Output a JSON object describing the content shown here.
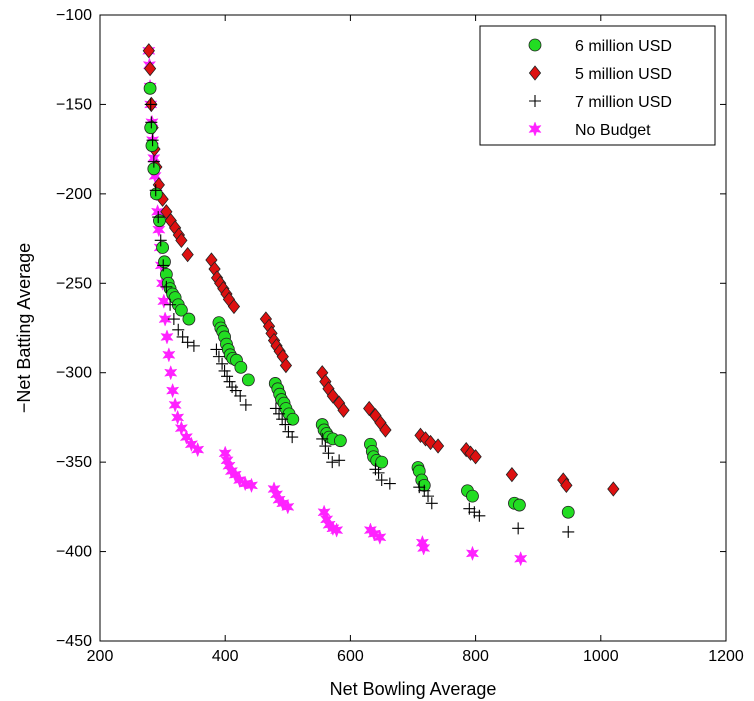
{
  "chart_data": {
    "type": "scatter",
    "title": "",
    "xlabel": "Net Bowling Average",
    "ylabel": "−Net Batting Average",
    "xlim": [
      200,
      1200
    ],
    "ylim": [
      -450,
      -100
    ],
    "xticks": [
      "200",
      "400",
      "600",
      "800",
      "1000",
      "1200"
    ],
    "yticks": [
      "−100",
      "−150",
      "−200",
      "−250",
      "−300",
      "−350",
      "−400",
      "−450"
    ],
    "grid": false,
    "legend_position": "top-right",
    "series": [
      {
        "name": "6 million USD",
        "marker": "circle",
        "color": "#22dd22",
        "points": [
          [
            280,
            -141
          ],
          [
            281,
            -163
          ],
          [
            283,
            -173
          ],
          [
            286,
            -186
          ],
          [
            290,
            -200
          ],
          [
            295,
            -215
          ],
          [
            300,
            -230
          ],
          [
            303,
            -238
          ],
          [
            306,
            -245
          ],
          [
            309,
            -250
          ],
          [
            312,
            -253
          ],
          [
            316,
            -256
          ],
          [
            320,
            -258
          ],
          [
            325,
            -262
          ],
          [
            330,
            -265
          ],
          [
            342,
            -270
          ],
          [
            390,
            -272
          ],
          [
            393,
            -275
          ],
          [
            396,
            -277
          ],
          [
            399,
            -280
          ],
          [
            402,
            -284
          ],
          [
            405,
            -287
          ],
          [
            408,
            -290
          ],
          [
            412,
            -292
          ],
          [
            418,
            -293
          ],
          [
            425,
            -297
          ],
          [
            437,
            -304
          ],
          [
            480,
            -306
          ],
          [
            484,
            -309
          ],
          [
            487,
            -312
          ],
          [
            490,
            -315
          ],
          [
            494,
            -317
          ],
          [
            497,
            -320
          ],
          [
            502,
            -323
          ],
          [
            508,
            -326
          ],
          [
            555,
            -329
          ],
          [
            558,
            -332
          ],
          [
            562,
            -334
          ],
          [
            566,
            -336
          ],
          [
            572,
            -337
          ],
          [
            584,
            -338
          ],
          [
            632,
            -340
          ],
          [
            635,
            -344
          ],
          [
            637,
            -347
          ],
          [
            642,
            -349
          ],
          [
            650,
            -350
          ],
          [
            708,
            -353
          ],
          [
            710,
            -355
          ],
          [
            714,
            -360
          ],
          [
            718,
            -363
          ],
          [
            787,
            -366
          ],
          [
            795,
            -369
          ],
          [
            862,
            -373
          ],
          [
            870,
            -374
          ],
          [
            948,
            -378
          ]
        ]
      },
      {
        "name": "5 million USD",
        "marker": "diamond",
        "color": "#dd1111",
        "points": [
          [
            278,
            -120
          ],
          [
            280,
            -130
          ],
          [
            282,
            -150
          ],
          [
            284,
            -163
          ],
          [
            287,
            -175
          ],
          [
            290,
            -185
          ],
          [
            294,
            -195
          ],
          [
            300,
            -203
          ],
          [
            306,
            -210
          ],
          [
            313,
            -215
          ],
          [
            320,
            -219
          ],
          [
            326,
            -223
          ],
          [
            330,
            -226
          ],
          [
            340,
            -234
          ],
          [
            378,
            -237
          ],
          [
            383,
            -242
          ],
          [
            387,
            -247
          ],
          [
            392,
            -250
          ],
          [
            397,
            -253
          ],
          [
            402,
            -256
          ],
          [
            406,
            -259
          ],
          [
            414,
            -263
          ],
          [
            465,
            -270
          ],
          [
            470,
            -274
          ],
          [
            474,
            -278
          ],
          [
            478,
            -282
          ],
          [
            482,
            -285
          ],
          [
            487,
            -288
          ],
          [
            492,
            -291
          ],
          [
            497,
            -296
          ],
          [
            555,
            -300
          ],
          [
            560,
            -305
          ],
          [
            565,
            -309
          ],
          [
            572,
            -313
          ],
          [
            582,
            -317
          ],
          [
            589,
            -321
          ],
          [
            630,
            -320
          ],
          [
            640,
            -324
          ],
          [
            648,
            -328
          ],
          [
            656,
            -332
          ],
          [
            712,
            -335
          ],
          [
            720,
            -337
          ],
          [
            728,
            -339
          ],
          [
            740,
            -341
          ],
          [
            785,
            -343
          ],
          [
            792,
            -345
          ],
          [
            800,
            -347
          ],
          [
            858,
            -357
          ],
          [
            940,
            -360
          ],
          [
            945,
            -363
          ],
          [
            1020,
            -365
          ]
        ]
      },
      {
        "name": "7 million USD",
        "marker": "plus",
        "color": "#000000",
        "points": [
          [
            281,
            -150
          ],
          [
            282,
            -160
          ],
          [
            284,
            -170
          ],
          [
            286,
            -182
          ],
          [
            289,
            -198
          ],
          [
            293,
            -213
          ],
          [
            297,
            -226
          ],
          [
            301,
            -240
          ],
          [
            306,
            -252
          ],
          [
            312,
            -262
          ],
          [
            318,
            -270
          ],
          [
            325,
            -276
          ],
          [
            332,
            -280
          ],
          [
            340,
            -283
          ],
          [
            350,
            -285
          ],
          [
            386,
            -287
          ],
          [
            390,
            -291
          ],
          [
            395,
            -295
          ],
          [
            399,
            -299
          ],
          [
            403,
            -302
          ],
          [
            407,
            -305
          ],
          [
            411,
            -308
          ],
          [
            417,
            -310
          ],
          [
            424,
            -313
          ],
          [
            433,
            -318
          ],
          [
            481,
            -320
          ],
          [
            486,
            -323
          ],
          [
            491,
            -326
          ],
          [
            496,
            -329
          ],
          [
            501,
            -333
          ],
          [
            507,
            -336
          ],
          [
            555,
            -337
          ],
          [
            560,
            -341
          ],
          [
            565,
            -345
          ],
          [
            571,
            -350
          ],
          [
            582,
            -349
          ],
          [
            640,
            -354
          ],
          [
            645,
            -356
          ],
          [
            650,
            -360
          ],
          [
            663,
            -362
          ],
          [
            710,
            -364
          ],
          [
            718,
            -366
          ],
          [
            724,
            -369
          ],
          [
            730,
            -373
          ],
          [
            790,
            -376
          ],
          [
            798,
            -378
          ],
          [
            806,
            -380
          ],
          [
            868,
            -387
          ],
          [
            948,
            -389
          ]
        ]
      },
      {
        "name": "No Budget",
        "marker": "star",
        "color": "#ff22ff",
        "points": [
          [
            278,
            -120
          ],
          [
            279,
            -128
          ],
          [
            280,
            -140
          ],
          [
            281,
            -150
          ],
          [
            283,
            -160
          ],
          [
            284,
            -170
          ],
          [
            286,
            -180
          ],
          [
            288,
            -190
          ],
          [
            290,
            -200
          ],
          [
            292,
            -210
          ],
          [
            294,
            -220
          ],
          [
            296,
            -230
          ],
          [
            298,
            -240
          ],
          [
            300,
            -250
          ],
          [
            302,
            -260
          ],
          [
            304,
            -270
          ],
          [
            307,
            -280
          ],
          [
            310,
            -290
          ],
          [
            313,
            -300
          ],
          [
            316,
            -310
          ],
          [
            320,
            -318
          ],
          [
            324,
            -325
          ],
          [
            330,
            -331
          ],
          [
            338,
            -336
          ],
          [
            346,
            -340
          ],
          [
            356,
            -343
          ],
          [
            400,
            -345
          ],
          [
            403,
            -349
          ],
          [
            406,
            -352
          ],
          [
            410,
            -355
          ],
          [
            416,
            -357
          ],
          [
            423,
            -360
          ],
          [
            432,
            -362
          ],
          [
            442,
            -363
          ],
          [
            478,
            -365
          ],
          [
            482,
            -368
          ],
          [
            486,
            -371
          ],
          [
            492,
            -373
          ],
          [
            500,
            -375
          ],
          [
            558,
            -378
          ],
          [
            562,
            -382
          ],
          [
            566,
            -385
          ],
          [
            572,
            -387
          ],
          [
            578,
            -388
          ],
          [
            632,
            -388
          ],
          [
            638,
            -390
          ],
          [
            647,
            -392
          ],
          [
            715,
            -395
          ],
          [
            717,
            -398
          ],
          [
            795,
            -401
          ],
          [
            872,
            -404
          ]
        ]
      }
    ]
  }
}
